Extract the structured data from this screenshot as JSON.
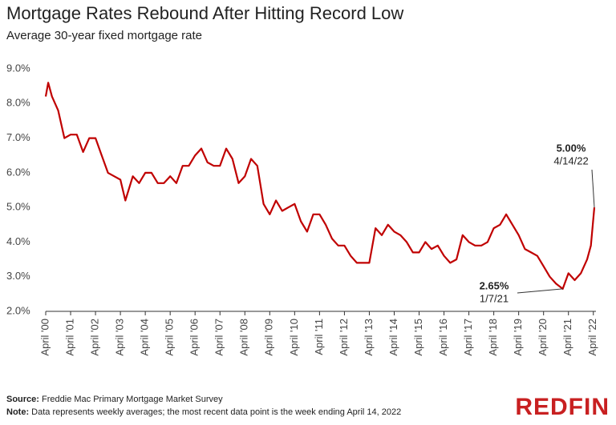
{
  "chart_data": {
    "type": "line",
    "title": "Mortgage Rates Rebound After Hitting Record Low",
    "subtitle": "Average 30-year fixed mortgage rate",
    "x": [
      2000.25,
      2000.35,
      2000.5,
      2000.75,
      2001.0,
      2001.25,
      2001.5,
      2001.75,
      2002.0,
      2002.25,
      2002.5,
      2002.75,
      2003.0,
      2003.25,
      2003.45,
      2003.75,
      2004.0,
      2004.25,
      2004.5,
      2004.75,
      2005.0,
      2005.25,
      2005.5,
      2005.75,
      2006.0,
      2006.25,
      2006.5,
      2006.75,
      2007.0,
      2007.25,
      2007.5,
      2007.75,
      2008.0,
      2008.25,
      2008.5,
      2008.75,
      2009.0,
      2009.25,
      2009.5,
      2009.75,
      2010.0,
      2010.25,
      2010.5,
      2010.75,
      2011.0,
      2011.25,
      2011.5,
      2011.75,
      2012.0,
      2012.25,
      2012.5,
      2012.75,
      2013.0,
      2013.25,
      2013.5,
      2013.75,
      2014.0,
      2014.25,
      2014.5,
      2014.75,
      2015.0,
      2015.25,
      2015.5,
      2015.75,
      2016.0,
      2016.25,
      2016.5,
      2016.75,
      2017.0,
      2017.25,
      2017.5,
      2017.75,
      2018.0,
      2018.25,
      2018.5,
      2018.75,
      2019.0,
      2019.25,
      2019.5,
      2019.75,
      2020.0,
      2020.25,
      2020.5,
      2020.75,
      2021.02,
      2021.25,
      2021.5,
      2021.75,
      2022.0,
      2022.15,
      2022.29
    ],
    "series": [
      {
        "name": "Average 30-year fixed mortgage rate",
        "color": "#c00000",
        "values": [
          8.2,
          8.6,
          8.2,
          7.8,
          7.0,
          7.1,
          7.1,
          6.6,
          7.0,
          7.0,
          6.5,
          6.0,
          5.9,
          5.8,
          5.2,
          5.9,
          5.7,
          6.0,
          6.0,
          5.7,
          5.7,
          5.9,
          5.7,
          6.2,
          6.2,
          6.5,
          6.7,
          6.3,
          6.2,
          6.2,
          6.7,
          6.4,
          5.7,
          5.9,
          6.4,
          6.2,
          5.1,
          4.8,
          5.2,
          4.9,
          5.0,
          5.1,
          4.6,
          4.3,
          4.8,
          4.8,
          4.5,
          4.1,
          3.9,
          3.9,
          3.6,
          3.4,
          3.4,
          3.4,
          4.4,
          4.2,
          4.5,
          4.3,
          4.2,
          4.0,
          3.7,
          3.7,
          4.0,
          3.8,
          3.9,
          3.6,
          3.4,
          3.5,
          4.2,
          4.0,
          3.9,
          3.9,
          4.0,
          4.4,
          4.5,
          4.8,
          4.5,
          4.2,
          3.8,
          3.7,
          3.6,
          3.3,
          3.0,
          2.8,
          2.65,
          3.1,
          2.9,
          3.1,
          3.5,
          3.9,
          5.0
        ]
      }
    ],
    "xlim": [
      2000.25,
      2022.29
    ],
    "xticks": [
      {
        "value": 2000.25,
        "label": "April '00"
      },
      {
        "value": 2001.25,
        "label": "April '01"
      },
      {
        "value": 2002.25,
        "label": "April '02"
      },
      {
        "value": 2003.25,
        "label": "April '03"
      },
      {
        "value": 2004.25,
        "label": "April '04"
      },
      {
        "value": 2005.25,
        "label": "April '05"
      },
      {
        "value": 2006.25,
        "label": "April '06"
      },
      {
        "value": 2007.25,
        "label": "April '07"
      },
      {
        "value": 2008.25,
        "label": "April '08"
      },
      {
        "value": 2009.25,
        "label": "April '09"
      },
      {
        "value": 2010.25,
        "label": "April '10"
      },
      {
        "value": 2011.25,
        "label": "April '11"
      },
      {
        "value": 2012.25,
        "label": "April '12"
      },
      {
        "value": 2013.25,
        "label": "April '13"
      },
      {
        "value": 2014.25,
        "label": "April '14"
      },
      {
        "value": 2015.25,
        "label": "April '15"
      },
      {
        "value": 2016.25,
        "label": "April '16"
      },
      {
        "value": 2017.25,
        "label": "April '17"
      },
      {
        "value": 2018.25,
        "label": "April '18"
      },
      {
        "value": 2019.25,
        "label": "April '19"
      },
      {
        "value": 2020.25,
        "label": "April '20"
      },
      {
        "value": 2021.25,
        "label": "April '21"
      },
      {
        "value": 2022.25,
        "label": "April '22"
      }
    ],
    "ylim": [
      2,
      9
    ],
    "yticks": [
      {
        "value": 2,
        "label": "2.0%"
      },
      {
        "value": 3,
        "label": "3.0%"
      },
      {
        "value": 4,
        "label": "4.0%"
      },
      {
        "value": 5,
        "label": "5.0%"
      },
      {
        "value": 6,
        "label": "6.0%"
      },
      {
        "value": 7,
        "label": "7.0%"
      },
      {
        "value": 8,
        "label": "8.0%"
      },
      {
        "value": 9,
        "label": "9.0%"
      }
    ],
    "grid": false,
    "annotations": [
      {
        "x": 2022.29,
        "y": 5.0,
        "value_label": "5.00%",
        "date": "4/14/22"
      },
      {
        "x": 2021.02,
        "y": 2.65,
        "value_label": "2.65%",
        "date": "1/7/21"
      }
    ],
    "source_label": "Source:",
    "source": "Freddie Mac Primary Mortgage Market Survey",
    "note_label": "Note:",
    "note": "Data represents weekly averages; the most recent data point is the week ending April 14, 2022",
    "logo": "REDFIN"
  }
}
